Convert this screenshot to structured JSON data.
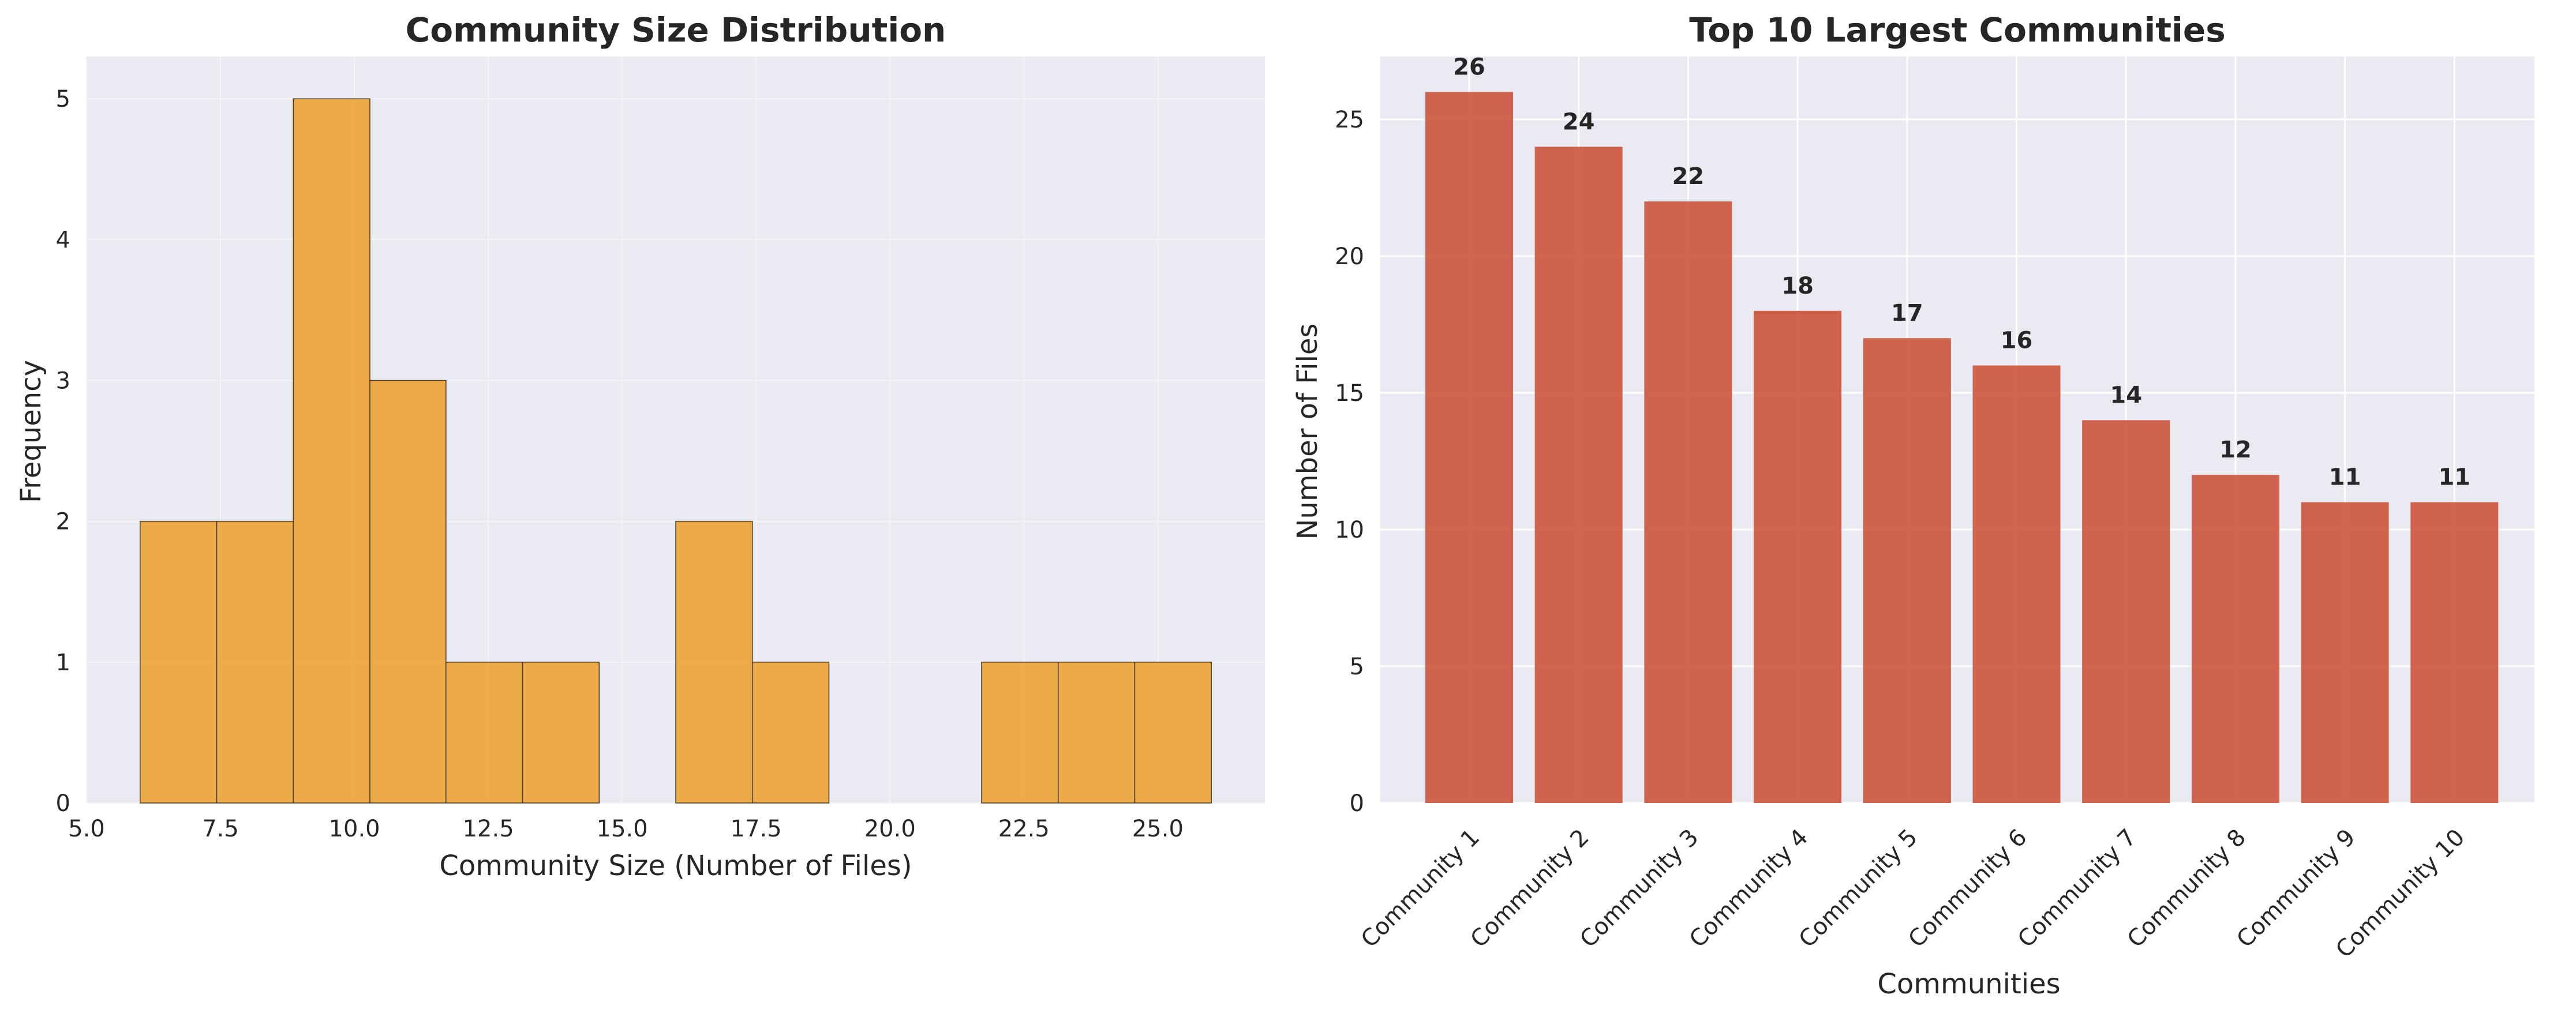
{
  "chart_data": [
    {
      "type": "bar",
      "title": "Community Size Distribution",
      "xlabel": "Community Size (Number of Files)",
      "ylabel": "Frequency",
      "xlim": [
        5.0,
        27.0
      ],
      "ylim": [
        0,
        5.3
      ],
      "xticks": [
        "5.0",
        "7.5",
        "10.0",
        "12.5",
        "15.0",
        "17.5",
        "20.0",
        "22.5",
        "25.0"
      ],
      "yticks": [
        "0",
        "1",
        "2",
        "3",
        "4",
        "5"
      ],
      "bins": [
        {
          "x0": 6.0,
          "x1": 7.43,
          "count": 2
        },
        {
          "x0": 7.43,
          "x1": 8.86,
          "count": 2
        },
        {
          "x0": 8.86,
          "x1": 10.29,
          "count": 5
        },
        {
          "x0": 10.29,
          "x1": 11.71,
          "count": 3
        },
        {
          "x0": 11.71,
          "x1": 13.14,
          "count": 1
        },
        {
          "x0": 13.14,
          "x1": 14.57,
          "count": 1
        },
        {
          "x0": 14.57,
          "x1": 16.0,
          "count": 0
        },
        {
          "x0": 16.0,
          "x1": 17.43,
          "count": 2
        },
        {
          "x0": 17.43,
          "x1": 18.86,
          "count": 1
        },
        {
          "x0": 18.86,
          "x1": 20.29,
          "count": 0
        },
        {
          "x0": 20.29,
          "x1": 21.71,
          "count": 0
        },
        {
          "x0": 21.71,
          "x1": 23.14,
          "count": 1
        },
        {
          "x0": 23.14,
          "x1": 24.57,
          "count": 1
        },
        {
          "x0": 24.57,
          "x1": 26.0,
          "count": 1
        }
      ],
      "grid": true,
      "color": "#eca63f"
    },
    {
      "type": "bar",
      "title": "Top 10 Largest Communities",
      "xlabel": "Communities",
      "ylabel": "Number of Files",
      "ylim": [
        0,
        27.3
      ],
      "yticks": [
        "0",
        "5",
        "10",
        "15",
        "20",
        "25"
      ],
      "categories": [
        "Community 1",
        "Community 2",
        "Community 3",
        "Community 4",
        "Community 5",
        "Community 6",
        "Community 7",
        "Community 8",
        "Community 9",
        "Community 10"
      ],
      "values": [
        26,
        24,
        22,
        18,
        17,
        16,
        14,
        12,
        11,
        11
      ],
      "data_labels": [
        "26",
        "24",
        "22",
        "18",
        "17",
        "16",
        "14",
        "12",
        "11",
        "11"
      ],
      "grid": true,
      "color": "#cd5c45"
    }
  ]
}
